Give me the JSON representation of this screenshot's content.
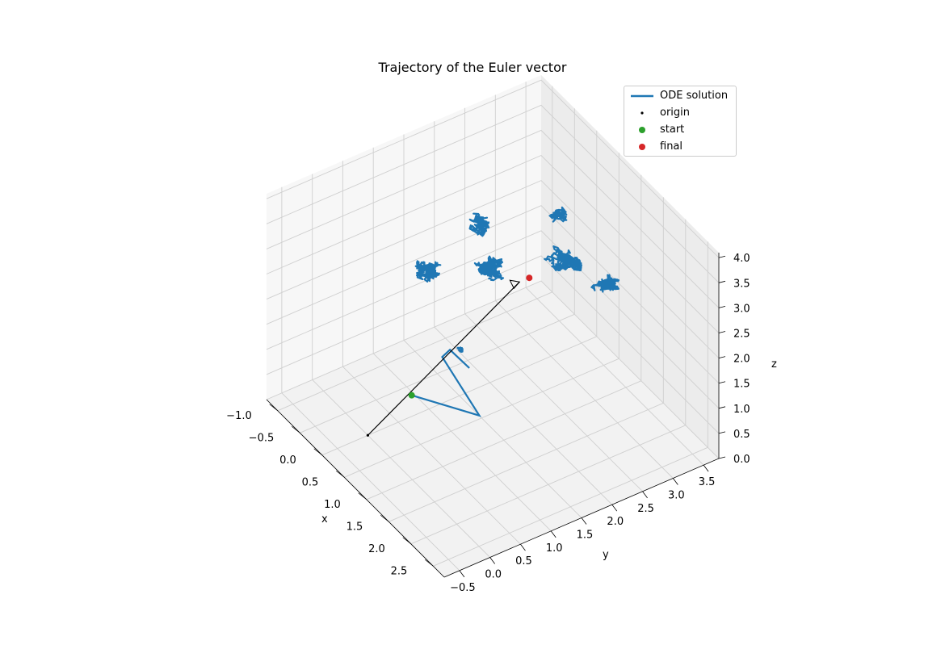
{
  "chart_data": {
    "type": "line3d",
    "title": "Trajectory of the Euler vector",
    "xlabel": "x",
    "ylabel": "y",
    "zlabel": "z",
    "xlim": [
      -1.25,
      2.75
    ],
    "ylim": [
      -0.75,
      3.75
    ],
    "zlim": [
      0,
      4.1
    ],
    "xticks": [
      "−1.0",
      "−0.5",
      "0.0",
      "0.5",
      "1.0",
      "1.5",
      "2.0",
      "2.5"
    ],
    "xtick_values": [
      -1.0,
      -0.5,
      0.0,
      0.5,
      1.0,
      1.5,
      2.0,
      2.5
    ],
    "yticks": [
      "−0.5",
      "0.0",
      "0.5",
      "1.0",
      "1.5",
      "2.0",
      "2.5",
      "3.0",
      "3.5"
    ],
    "ytick_values": [
      -0.5,
      0.0,
      0.5,
      1.0,
      1.5,
      2.0,
      2.5,
      3.0,
      3.5
    ],
    "zticks": [
      "0.0",
      "0.5",
      "1.0",
      "1.5",
      "2.0",
      "2.5",
      "3.0",
      "3.5",
      "4.0"
    ],
    "ztick_values": [
      0.0,
      0.5,
      1.0,
      1.5,
      2.0,
      2.5,
      3.0,
      3.5,
      4.0
    ],
    "grid": true,
    "legend_position": "upper right",
    "legend": [
      {
        "label": "ODE solution",
        "kind": "line",
        "color": "#1f77b4"
      },
      {
        "label": "origin",
        "kind": "dot",
        "color": "#000000"
      },
      {
        "label": "start",
        "kind": "marker",
        "color": "#2ca02c"
      },
      {
        "label": "final",
        "kind": "marker",
        "color": "#d62728"
      }
    ],
    "origin": {
      "x": 0,
      "y": 0,
      "z": 0
    },
    "start": {
      "x": 0.3,
      "y": 0.5,
      "z": 0.8
    },
    "final": {
      "x": 0.2,
      "y": 2.5,
      "z": 2.0
    },
    "ode_line_path": [
      {
        "x": 0.3,
        "y": 0.5,
        "z": 0.8
      },
      {
        "x": 1.0,
        "y": 1.1,
        "z": 0.7
      },
      {
        "x": 0.3,
        "y": 1.0,
        "z": 1.3
      },
      {
        "x": 0.2,
        "y": 1.2,
        "z": 1.25
      },
      {
        "x": 0.5,
        "y": 1.3,
        "z": 1.1
      }
    ],
    "ode_cluster_centers": [
      {
        "x": 0.3,
        "y": 1.3,
        "z": 1.3,
        "spread": 0.08,
        "n": 60
      },
      {
        "x": -0.3,
        "y": 1.2,
        "z": 2.4,
        "spread": 0.35,
        "n": 260
      },
      {
        "x": 0.0,
        "y": 2.0,
        "z": 2.3,
        "spread": 0.35,
        "n": 260
      },
      {
        "x": -0.5,
        "y": 2.2,
        "z": 2.6,
        "spread": 0.3,
        "n": 200
      },
      {
        "x": 0.4,
        "y": 2.9,
        "z": 2.3,
        "spread": 0.35,
        "n": 320
      },
      {
        "x": 0.9,
        "y": 3.3,
        "z": 2.1,
        "spread": 0.3,
        "n": 220
      },
      {
        "x": 0.2,
        "y": 3.0,
        "z": 3.0,
        "spread": 0.25,
        "n": 160
      }
    ],
    "colors": {
      "ode": "#1f77b4",
      "start": "#2ca02c",
      "final": "#d62728",
      "arrow": "#000000",
      "grid": "#cfcfcf"
    }
  }
}
